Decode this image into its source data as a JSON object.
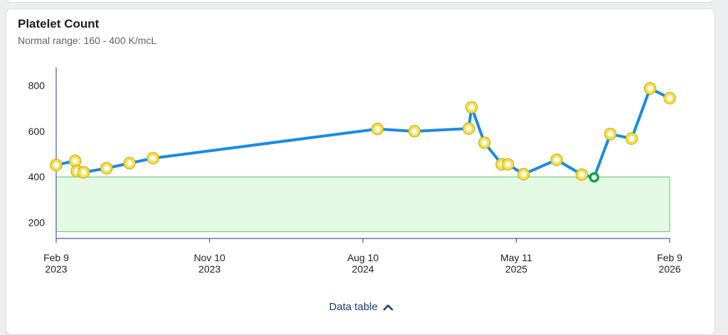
{
  "card": {
    "title": "Platelet Count",
    "subtitle": "Normal range: 160 - 400 K/mcL"
  },
  "footer": {
    "data_table_label": "Data table",
    "toggle_icon": "chevron-up-icon"
  },
  "colors": {
    "line": "#1a8ae5",
    "point_abnormal_fill": "#f4e04d",
    "point_abnormal_stroke": "#c9a400",
    "point_normal_stroke": "#13a538",
    "range_fill": "#e3f9e3",
    "range_stroke": "#5cc46a",
    "axis": "#4a5a9a"
  },
  "chart_data": {
    "type": "line",
    "title": "Platelet Count",
    "subtitle": "Normal range: 160 - 400 K/mcL",
    "xlabel": "",
    "ylabel": "",
    "ylim": [
      130,
      880
    ],
    "xlim": [
      "2023-02-09",
      "2026-02-09"
    ],
    "y_ticks": [
      200,
      400,
      600,
      800
    ],
    "x_ticks": [
      {
        "date": "2023-02-09",
        "line1": "Feb 9",
        "line2": "2023"
      },
      {
        "date": "2023-11-10",
        "line1": "Nov 10",
        "line2": "2023"
      },
      {
        "date": "2024-08-10",
        "line1": "Aug 10",
        "line2": "2024"
      },
      {
        "date": "2025-05-11",
        "line1": "May 11",
        "line2": "2025"
      },
      {
        "date": "2026-02-09",
        "line1": "Feb 9",
        "line2": "2026"
      }
    ],
    "normal_range": [
      160,
      400
    ],
    "grid": false,
    "series": [
      {
        "points": [
          {
            "x": "2023-02-09",
            "y": 452,
            "in_range": false
          },
          {
            "x": "2023-03-15",
            "y": 470,
            "in_range": false
          },
          {
            "x": "2023-03-18",
            "y": 425,
            "in_range": false
          },
          {
            "x": "2023-03-30",
            "y": 420,
            "in_range": false
          },
          {
            "x": "2023-05-10",
            "y": 438,
            "in_range": false
          },
          {
            "x": "2023-06-20",
            "y": 460,
            "in_range": false
          },
          {
            "x": "2023-08-01",
            "y": 482,
            "in_range": false
          },
          {
            "x": "2024-09-05",
            "y": 610,
            "in_range": false
          },
          {
            "x": "2024-11-10",
            "y": 600,
            "in_range": false
          },
          {
            "x": "2025-02-15",
            "y": 612,
            "in_range": false
          },
          {
            "x": "2025-02-20",
            "y": 705,
            "in_range": false
          },
          {
            "x": "2025-03-15",
            "y": 550,
            "in_range": false
          },
          {
            "x": "2025-04-15",
            "y": 455,
            "in_range": false
          },
          {
            "x": "2025-04-26",
            "y": 455,
            "in_range": false
          },
          {
            "x": "2025-05-24",
            "y": 412,
            "in_range": false
          },
          {
            "x": "2025-07-22",
            "y": 475,
            "in_range": false
          },
          {
            "x": "2025-09-05",
            "y": 410,
            "in_range": false
          },
          {
            "x": "2025-09-27",
            "y": 398,
            "in_range": true
          },
          {
            "x": "2025-10-26",
            "y": 588,
            "in_range": false
          },
          {
            "x": "2025-12-03",
            "y": 568,
            "in_range": false
          },
          {
            "x": "2026-01-05",
            "y": 788,
            "in_range": false
          },
          {
            "x": "2026-02-09",
            "y": 745,
            "in_range": false
          }
        ]
      }
    ]
  }
}
